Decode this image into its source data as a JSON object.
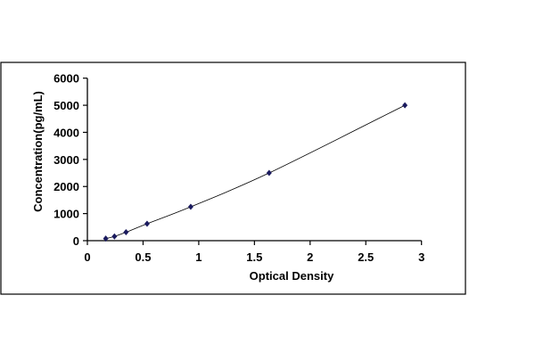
{
  "chart_data": {
    "type": "scatter",
    "title": "",
    "xlabel": "Optical Density",
    "ylabel": "Concentration(pg/mL)",
    "xlim": [
      0,
      3
    ],
    "ylim": [
      0,
      6000
    ],
    "x_ticks": [
      "0",
      "0.5",
      "1",
      "1.5",
      "2",
      "2.5",
      "3"
    ],
    "y_ticks": [
      "0",
      "1000",
      "2000",
      "3000",
      "4000",
      "5000",
      "6000"
    ],
    "grid": false,
    "legend": "none",
    "trendline": "smooth",
    "marker": "diamond",
    "marker_color": "#1a1a5e",
    "line_color": "#000000",
    "series": [
      {
        "x": [
          0.165,
          0.243,
          0.347,
          0.536,
          0.928,
          1.632,
          2.851
        ],
        "y": [
          78,
          156,
          312,
          625,
          1250,
          2500,
          5000
        ]
      }
    ]
  }
}
